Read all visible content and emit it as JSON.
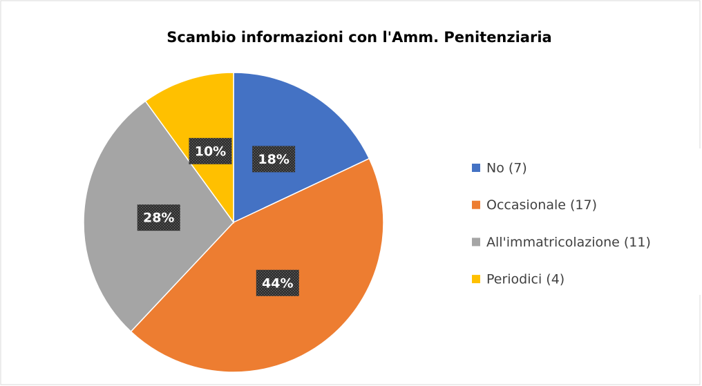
{
  "chart_data": {
    "type": "pie",
    "title": "Scambio informazioni con l'Amm. Penitenziaria",
    "categories": [
      "No (7)",
      "Occasionale (17)",
      "All'immatricolazione (11)",
      "Periodici (4)"
    ],
    "values": [
      18,
      44,
      28,
      10
    ],
    "value_labels": [
      "18%",
      "44%",
      "28%",
      "10%"
    ],
    "colors": [
      "#4472c4",
      "#ed7d31",
      "#a5a5a5",
      "#ffc000"
    ],
    "legend": "right"
  }
}
